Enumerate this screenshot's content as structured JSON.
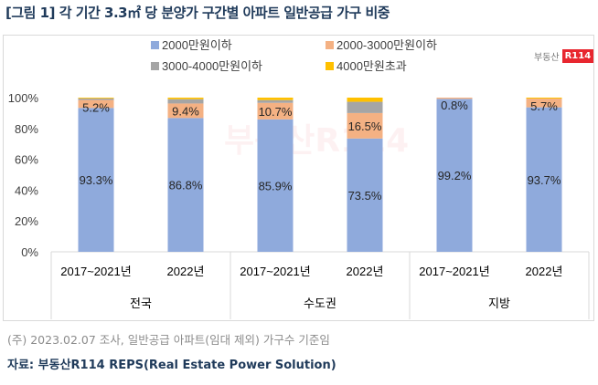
{
  "title": "[그림 1] 각 기간 3.3㎡ 당 분양가 구간별 아파트 일반공급 가구 비중",
  "footnote": "(주) 2023.02.07 조사, 일반공급 아파트(임대 제외) 가구수 기준임",
  "source": "자료: 부동산R114 REPS(Real Estate Power Solution)",
  "logo": {
    "text": "부동산",
    "badge": "R114"
  },
  "chart_data": {
    "type": "bar",
    "stacked": true,
    "groups": [
      "전국",
      "수도권",
      "지방"
    ],
    "categories": [
      "2017~2021년",
      "2022년",
      "2017~2021년",
      "2022년",
      "2017~2021년",
      "2022년"
    ],
    "ylim": [
      0,
      100
    ],
    "yticks": [
      "0%",
      "20%",
      "40%",
      "60%",
      "80%",
      "100%"
    ],
    "legend_position": "top",
    "series": [
      {
        "name": "2000만원이하",
        "color": "#8faadc",
        "values": [
          93.3,
          86.8,
          85.9,
          73.5,
          99.2,
          93.7
        ],
        "labels": [
          "93.3%",
          "86.8%",
          "85.9%",
          "73.5%",
          "99.2%",
          "93.7%"
        ]
      },
      {
        "name": "2000-3000만원이하",
        "color": "#f4b183",
        "values": [
          5.2,
          9.4,
          10.7,
          16.5,
          0.8,
          5.7
        ],
        "labels": [
          "5.2%",
          "9.4%",
          "10.7%",
          "16.5%",
          "0.8%",
          "5.7%"
        ]
      },
      {
        "name": "3000-4000만원이하",
        "color": "#a5a5a5",
        "values": [
          1.0,
          2.8,
          1.8,
          7.3,
          0,
          0
        ],
        "labels": []
      },
      {
        "name": "4000만원초과",
        "color": "#ffc000",
        "values": [
          0.5,
          1.0,
          1.6,
          2.7,
          0,
          0.6
        ],
        "labels": []
      }
    ]
  }
}
